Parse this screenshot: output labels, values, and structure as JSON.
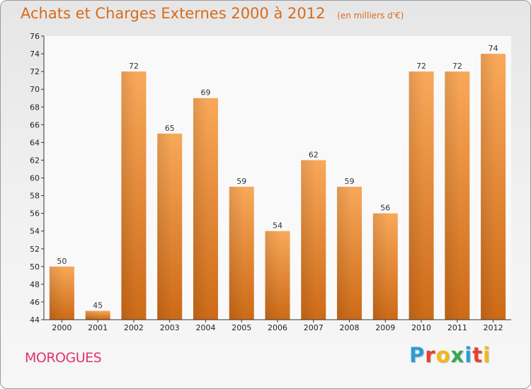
{
  "header": {
    "title": "Achats et Charges Externes 2000 à 2012",
    "unit": "(en milliers d'€)"
  },
  "footer": {
    "city": "MOROGUES",
    "brand": [
      "P",
      "r",
      "o",
      "x",
      "i",
      "t",
      "i"
    ],
    "brand_colors": [
      "#2b9bd7",
      "#e8402f",
      "#f2b817",
      "#33a852",
      "#2b9bd7",
      "#e8402f",
      "#f2b817"
    ]
  },
  "chart_data": {
    "type": "bar",
    "categories": [
      "2000",
      "2001",
      "2002",
      "2003",
      "2004",
      "2005",
      "2006",
      "2007",
      "2008",
      "2009",
      "2010",
      "2011",
      "2012"
    ],
    "values": [
      50,
      45,
      72,
      65,
      69,
      59,
      54,
      62,
      59,
      56,
      72,
      72,
      74
    ],
    "title": "Achats et Charges Externes 2000 à 2012",
    "ylim": [
      44,
      76
    ],
    "yticks": [
      44,
      46,
      48,
      50,
      52,
      54,
      56,
      58,
      60,
      62,
      64,
      66,
      68,
      70,
      72,
      74,
      76
    ],
    "grid": false,
    "bar_color": "#f08a32"
  }
}
